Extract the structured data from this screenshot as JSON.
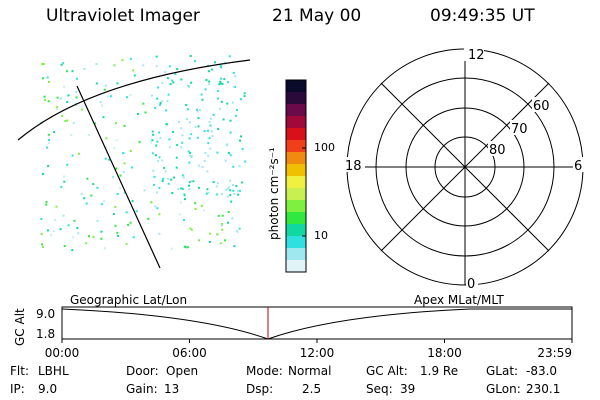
{
  "header": {
    "instrument": "Ultraviolet Imager",
    "date": "21 May 00",
    "time": "09:49:35 UT"
  },
  "colorbar": {
    "unit_label": "photon cm⁻²s⁻¹",
    "ticks": [
      "100",
      "10"
    ],
    "colors": [
      "#0a0a2a",
      "#2a0a3a",
      "#6a0a4a",
      "#a00a3a",
      "#d8101a",
      "#f0401a",
      "#f08a10",
      "#f0c000",
      "#f0f040",
      "#c8f050",
      "#80f040",
      "#30e840",
      "#10d8a0",
      "#30e0e0",
      "#a0e8f0",
      "#e0f4f8"
    ]
  },
  "polar_plot": {
    "latitude_labels": [
      "60",
      "70",
      "80"
    ],
    "mlt_labels": {
      "top": "12",
      "left": "18",
      "right": "6",
      "bottom": "0"
    }
  },
  "timeline": {
    "left_title": "Geographic Lat/Lon",
    "right_title": "Apex MLat/MLT",
    "y_axis_label": "GC Alt",
    "y_ticks": [
      "9.0",
      "1.8"
    ],
    "x_ticks": [
      "00:00",
      "06:00",
      "12:00",
      "18:00",
      "23:59"
    ],
    "cursor_time": "09:49:35",
    "marker_color": "#c00000"
  },
  "status": {
    "filter_label": "Flt:",
    "filter_value": "LBHL",
    "ip_label": "IP:",
    "ip_value": "9.0",
    "door_label": "Door:",
    "door_value": "Open",
    "gain_label": "Gain:",
    "gain_value": "13",
    "mode_label": "Mode:",
    "mode_value": "Normal",
    "dsp_label": "Dsp:",
    "dsp_value": "2.5",
    "gcalt_label": "GC Alt:",
    "gcalt_value": "1.9 Re",
    "seq_label": "Seq:",
    "seq_value": "39",
    "glat_label": "GLat:",
    "glat_value": "-83.0",
    "glon_label": "GLon:",
    "glon_value": "230.1"
  }
}
